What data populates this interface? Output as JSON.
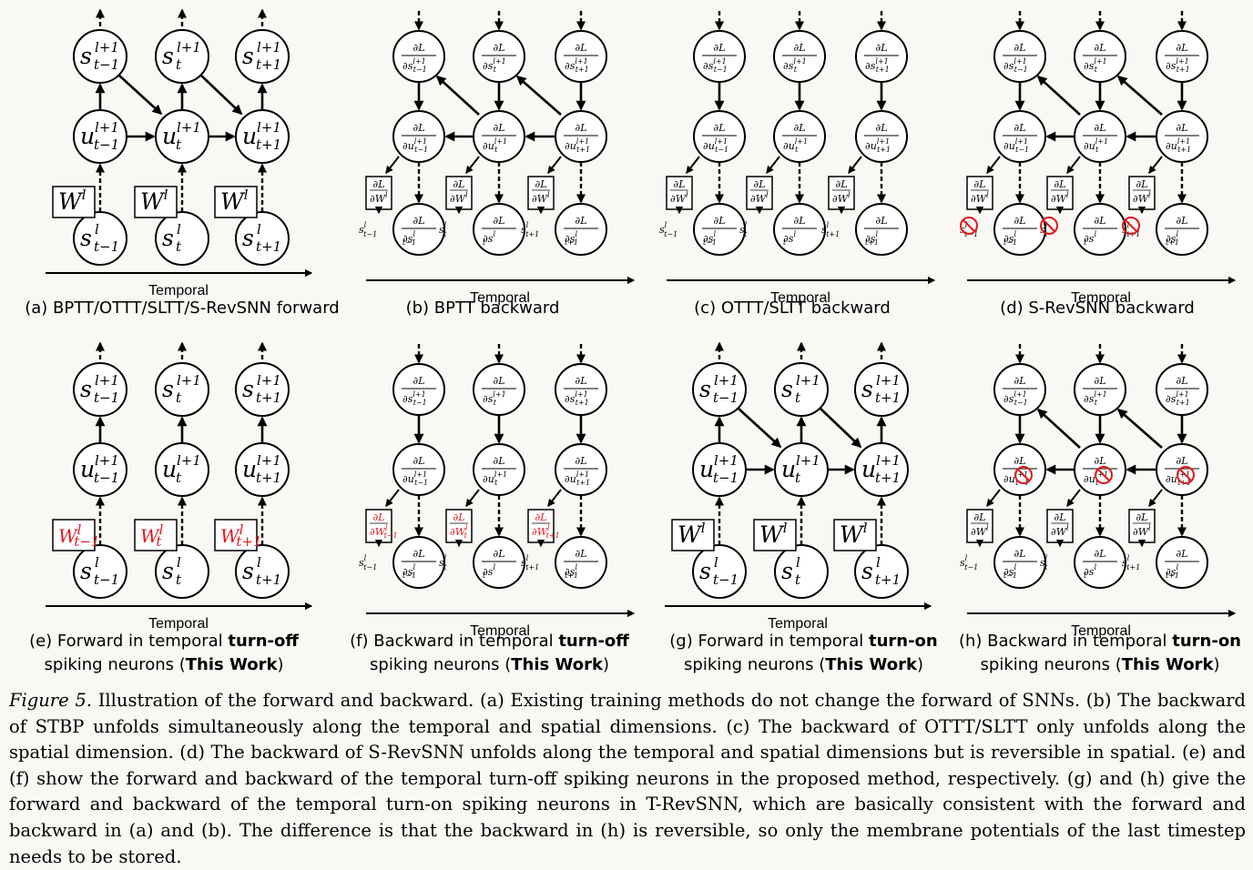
{
  "axis_label": "Temporal",
  "symbols": {
    "s": "s",
    "u": "u",
    "W": "W",
    "dL": "∂L",
    "sup_l1": "l+1",
    "sup_l": "l",
    "t_minus": "t−1",
    "t": "t",
    "t_plus": "t+1"
  },
  "panels": [
    {
      "id": "a",
      "label_plain": "(a) BPTT/OTTT/SLTT/S-RevSNN forward"
    },
    {
      "id": "b",
      "label_plain": "(b) BPTT backward"
    },
    {
      "id": "c",
      "label_plain": "(c) OTTT/SLTT backward"
    },
    {
      "id": "d",
      "label_plain": "(d) S-RevSNN backward"
    },
    {
      "id": "e",
      "line1_pre": "(e) Forward in temporal ",
      "line1_bold": "turn-off",
      "line2_pre": "spiking neurons (",
      "line2_bold": "This Work",
      "line2_post": ")"
    },
    {
      "id": "f",
      "line1_pre": "(f) Backward in temporal ",
      "line1_bold": "turn-off",
      "line2_pre": "spiking neurons (",
      "line2_bold": "This Work",
      "line2_post": ")"
    },
    {
      "id": "g",
      "line1_pre": "(g) Forward in temporal ",
      "line1_bold": "turn-on",
      "line2_pre": "spiking neurons (",
      "line2_bold": "This Work",
      "line2_post": ")"
    },
    {
      "id": "h",
      "line1_pre": "(h) Backward in temporal ",
      "line1_bold": "turn-on",
      "line2_pre": "spiking neurons (",
      "line2_bold": "This Work",
      "line2_post": ")"
    }
  ],
  "caption": {
    "lead": "Figure 5.",
    "text": " Illustration of the forward and backward. (a) Existing training methods do not change the forward of SNNs. (b) The backward of STBP unfolds simultaneously along the temporal and spatial dimensions. (c) The backward of OTTT/SLTT only unfolds along the spatial dimension. (d) The backward of S-RevSNN unfolds along the temporal and spatial dimensions but is reversible in spatial. (e) and (f) show the forward and backward of the temporal turn-off spiking neurons in the proposed method, respectively. (g) and (h) give the forward and backward of the temporal turn-on spiking neurons in T-RevSNN, which are basically consistent with the forward and backward in (a) and (b). The difference is that the backward in (h) is reversible, so only the membrane potentials of the last timestep needs to be stored."
  },
  "colors": {
    "highlight": "#e0191e",
    "background": "#faf8f4"
  }
}
